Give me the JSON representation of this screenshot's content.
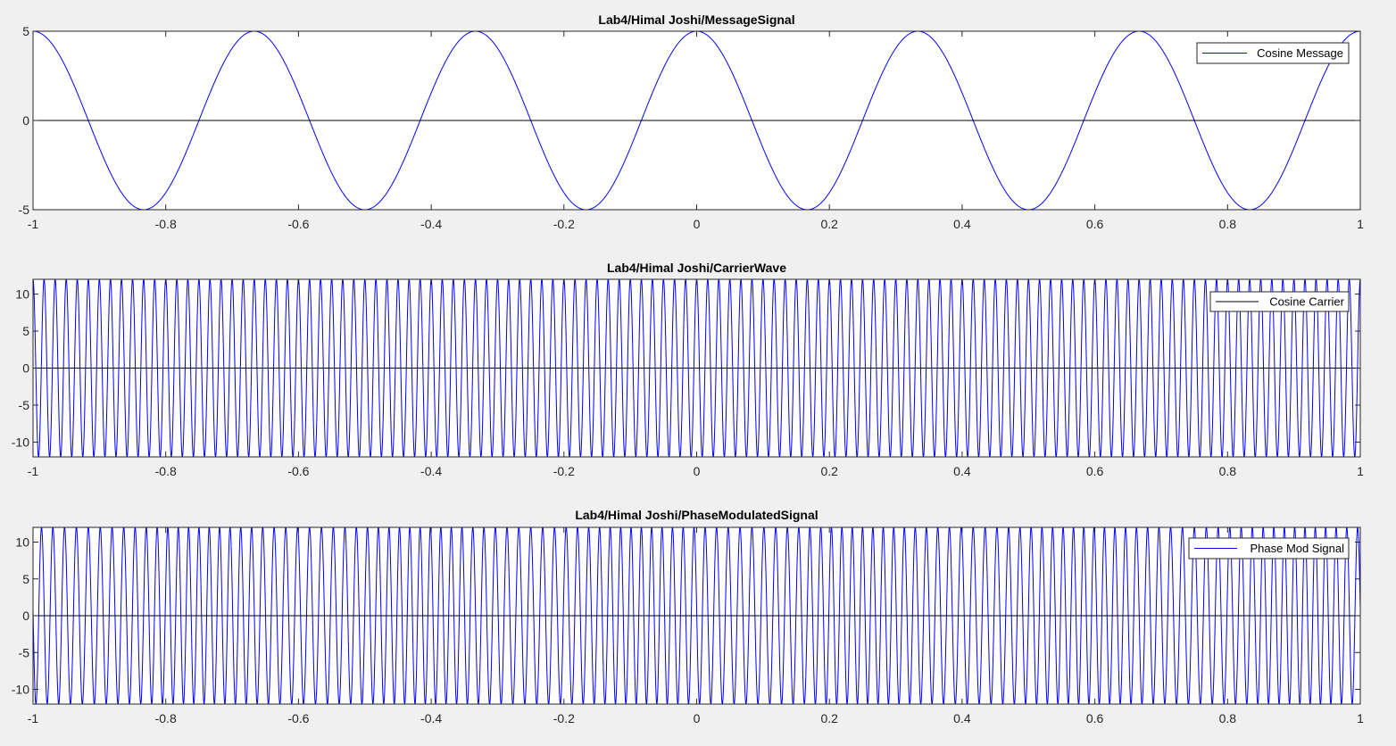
{
  "figure": {
    "background": "#f0f0f0",
    "axes_background": "#ffffff"
  },
  "chart_data": [
    {
      "type": "line",
      "title": "Lab4/Himal Joshi/MessageSignal",
      "xlabel": "",
      "ylabel": "",
      "xlim": [
        -1,
        1
      ],
      "ylim": [
        -5,
        5
      ],
      "xticks": [
        -1,
        -0.8,
        -0.6,
        -0.4,
        -0.2,
        0,
        0.2,
        0.4,
        0.6,
        0.8,
        1
      ],
      "xtick_labels": [
        "-1",
        "-0.8",
        "-0.6",
        "-0.4",
        "-0.2",
        "0",
        "0.2",
        "0.4",
        "0.6",
        "0.8",
        "1"
      ],
      "yticks": [
        -5,
        0,
        5
      ],
      "ytick_labels": [
        "-5",
        "0",
        "5"
      ],
      "grid": false,
      "legend": {
        "entries": [
          "Cosine Message"
        ],
        "location": "top-right"
      },
      "zero_line": true,
      "series": [
        {
          "name": "Cosine Message",
          "color": "#0000ff",
          "legend_color": "#0000ff",
          "function": "cosine",
          "amplitude": 5,
          "frequency_hz": 3
        }
      ]
    },
    {
      "type": "line",
      "title": "Lab4/Himal Joshi/CarrierWave",
      "xlabel": "",
      "ylabel": "",
      "xlim": [
        -1,
        1
      ],
      "ylim": [
        -12,
        12
      ],
      "xticks": [
        -1,
        -0.8,
        -0.6,
        -0.4,
        -0.2,
        0,
        0.2,
        0.4,
        0.6,
        0.8,
        1
      ],
      "xtick_labels": [
        "-1",
        "-0.8",
        "-0.6",
        "-0.4",
        "-0.2",
        "0",
        "0.2",
        "0.4",
        "0.6",
        "0.8",
        "1"
      ],
      "yticks": [
        -10,
        -5,
        0,
        5,
        10
      ],
      "ytick_labels": [
        "-10",
        "-5",
        "0",
        "5",
        "10"
      ],
      "grid": false,
      "legend": {
        "entries": [
          "Cosine Carrier"
        ],
        "location": "top-right"
      },
      "zero_line": true,
      "series": [
        {
          "name": "Cosine Carrier",
          "color": "#0000ff",
          "legend_color": "#000000",
          "function": "cosine",
          "amplitude": 12,
          "frequency_hz": 60
        }
      ]
    },
    {
      "type": "line",
      "title": "Lab4/Himal Joshi/PhaseModulatedSignal",
      "xlabel": "",
      "ylabel": "",
      "xlim": [
        -1,
        1
      ],
      "ylim": [
        -12,
        12
      ],
      "xticks": [
        -1,
        -0.8,
        -0.6,
        -0.4,
        -0.2,
        0,
        0.2,
        0.4,
        0.6,
        0.8,
        1
      ],
      "xtick_labels": [
        "-1",
        "-0.8",
        "-0.6",
        "-0.4",
        "-0.2",
        "0",
        "0.2",
        "0.4",
        "0.6",
        "0.8",
        "1"
      ],
      "yticks": [
        -10,
        -5,
        0,
        5,
        10
      ],
      "ytick_labels": [
        "-10",
        "-5",
        "0",
        "5",
        "10"
      ],
      "grid": false,
      "legend": {
        "entries": [
          "Phase Mod Signal"
        ],
        "location": "top-right"
      },
      "zero_line": true,
      "series": [
        {
          "name": "Phase Mod Signal",
          "color": "#0000ff",
          "legend_color": "#0000ff",
          "function": "phase-modulated cosine",
          "amplitude": 12,
          "carrier_frequency_hz": 60,
          "message_frequency_hz": 3,
          "phase_deviation_rad": 1.5
        }
      ]
    }
  ]
}
